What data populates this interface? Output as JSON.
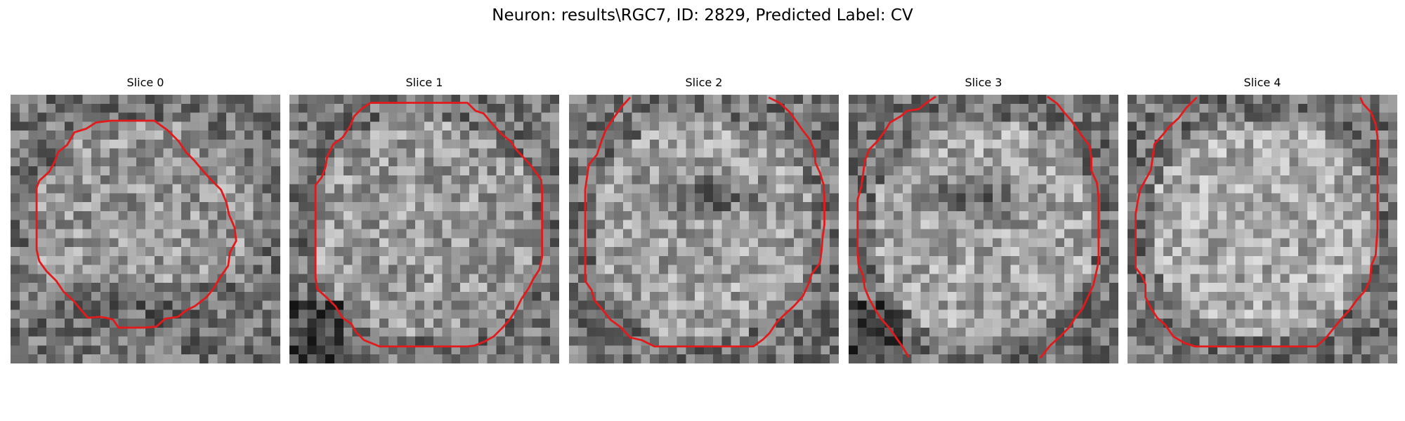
{
  "figure": {
    "title": "Neuron: results\\RGC7, ID: 2829, Predicted Label: CV",
    "contour_color": "#e31a1c",
    "colormap": "gray"
  },
  "panels": [
    {
      "title": "Slice 0"
    },
    {
      "title": "Slice 1"
    },
    {
      "title": "Slice 2"
    },
    {
      "title": "Slice 3"
    },
    {
      "title": "Slice 4"
    }
  ]
}
